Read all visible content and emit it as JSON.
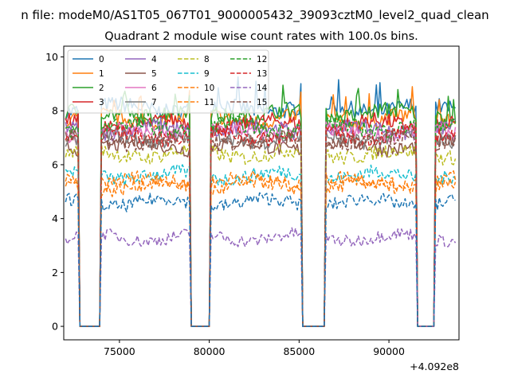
{
  "chart_data": {
    "type": "line",
    "suptitle": "n file: modeM0/AS1T05_067T01_9000005432_39093cztM0_level2_quad_clean",
    "title": "Quadrant 2 module wise count rates with 100.0s bins.",
    "xlabel": "",
    "ylabel": "",
    "offset_label": "+4.092e8",
    "xlim": [
      71900,
      93900
    ],
    "ylim": [
      -0.5,
      10.4
    ],
    "x_ticks": [
      75000,
      80000,
      85000,
      90000
    ],
    "x_tick_labels": [
      "75000",
      "80000",
      "85000",
      "90000"
    ],
    "y_ticks": [
      0,
      2,
      4,
      6,
      8,
      10
    ],
    "y_tick_labels": [
      "0",
      "2",
      "4",
      "6",
      "8",
      "10"
    ],
    "grid": false,
    "legend_position": "top-left",
    "bin_seconds": 100,
    "segments": [
      [
        72000,
        72700
      ],
      [
        74000,
        78900
      ],
      [
        80100,
        85100
      ],
      [
        86500,
        91500
      ],
      [
        92600,
        93700
      ]
    ],
    "series": [
      {
        "name": "0",
        "color": "#1f77b4",
        "dash": "solid",
        "level": 8.1
      },
      {
        "name": "1",
        "color": "#ff7f0e",
        "dash": "solid",
        "level": 7.7
      },
      {
        "name": "2",
        "color": "#2ca02c",
        "dash": "solid",
        "level": 7.9
      },
      {
        "name": "3",
        "color": "#d62728",
        "dash": "solid",
        "level": 7.5
      },
      {
        "name": "4",
        "color": "#9467bd",
        "dash": "solid",
        "level": 7.3
      },
      {
        "name": "5",
        "color": "#8c564b",
        "dash": "solid",
        "level": 6.7
      },
      {
        "name": "6",
        "color": "#e377c2",
        "dash": "solid",
        "level": 7.2
      },
      {
        "name": "7",
        "color": "#7f7f7f",
        "dash": "solid",
        "level": 7.0
      },
      {
        "name": "8",
        "color": "#bcbd22",
        "dash": "dashed",
        "level": 6.4
      },
      {
        "name": "9",
        "color": "#17becf",
        "dash": "dashed",
        "level": 5.6
      },
      {
        "name": "10",
        "color": "#ff7f0e",
        "dash": "dashed",
        "level": 5.2
      },
      {
        "name": "11",
        "color": "#ff7f0e",
        "dash": "dashed",
        "level": 5.4
      },
      {
        "name": "12",
        "color": "#2ca02c",
        "dash": "dashed",
        "level": 7.4
      },
      {
        "name": "13",
        "color": "#d62728",
        "dash": "dashed",
        "level": 7.1
      },
      {
        "name": "14",
        "color": "#9467bd",
        "dash": "dashed",
        "level": 3.3
      },
      {
        "name": "15",
        "color": "#8c564b",
        "dash": "dashed",
        "level": 6.9
      },
      {
        "name": "",
        "color": "#1f77b4",
        "dash": "dashed",
        "level": 4.6
      }
    ]
  }
}
